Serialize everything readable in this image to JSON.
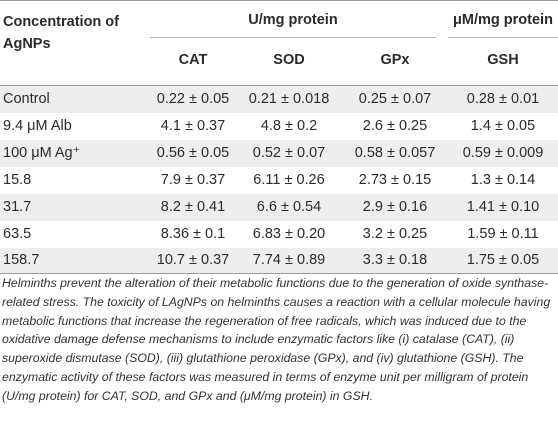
{
  "header": {
    "col0": "Concentration of AgNPs",
    "group1": "U/mg protein",
    "group2": "μM/mg protein",
    "cat": "CAT",
    "sod": "SOD",
    "gpx": "GPx",
    "gsh": "GSH"
  },
  "rows": [
    {
      "label": "Control",
      "cat": "0.22 ± 0.05",
      "sod": "0.21 ± 0.018",
      "gpx": "0.25 ± 0.07",
      "gsh": "0.28 ± 0.01"
    },
    {
      "label": "9.4 μM Alb",
      "cat": "4.1 ± 0.37",
      "sod": "4.8 ± 0.2",
      "gpx": "2.6 ± 0.25",
      "gsh": "1.4 ± 0.05"
    },
    {
      "label": "100 μM Ag⁺",
      "cat": "0.56 ± 0.05",
      "sod": "0.52 ± 0.07",
      "gpx": "0.58 ± 0.057",
      "gsh": "0.59 ± 0.009"
    },
    {
      "label": "15.8",
      "cat": "7.9 ± 0.37",
      "sod": "6.11 ± 0.26",
      "gpx": "2.73 ± 0.15",
      "gsh": "1.3 ± 0.14"
    },
    {
      "label": "31.7",
      "cat": "8.2 ± 0.41",
      "sod": "6.6 ± 0.54",
      "gpx": "2.9 ± 0.16",
      "gsh": "1.41 ± 0.10"
    },
    {
      "label": "63.5",
      "cat": "8.36 ± 0.1",
      "sod": "6.83 ± 0.20",
      "gpx": "3.2 ± 0.25",
      "gsh": "1.59 ± 0.11"
    },
    {
      "label": "158.7",
      "cat": "10.7 ± 0.37",
      "sod": "7.74 ± 0.89",
      "gpx": "3.3 ± 0.18",
      "gsh": "1.75 ± 0.05"
    }
  ],
  "caption": "Helminths prevent the alteration of their metabolic functions due to the generation of oxide synthase-related stress. The toxicity of LAgNPs on helminths causes a reaction with a cellular molecule having metabolic functions that increase the regeneration of free radicals, which was induced due to the oxidative damage defense mechanisms to include enzymatic factors like (i) catalase (CAT), (ii) superoxide dismutase (SOD), (iii) glutathione peroxidase (GPx), and (iv) glutathione (GSH). The enzymatic activity of these factors was measured in terms of enzyme unit per milligram of protein (U/mg protein) for CAT, SOD, and GPx and (μM/mg protein) in GSH."
}
